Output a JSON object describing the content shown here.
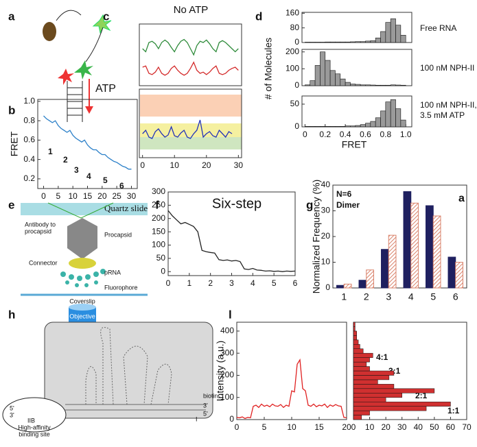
{
  "panel_labels": [
    "a",
    "b",
    "c",
    "d",
    "e",
    "f",
    "g",
    "h",
    "l"
  ],
  "diagram_a": {
    "arrow_label": "ATP"
  },
  "diagram_e": {
    "slide": "Quartz slide",
    "antibody": [
      "Antibody to",
      "procapsid"
    ],
    "procapsid": "Procapsid",
    "connector": "Connector",
    "prna": "pRNA",
    "fluorophore": "Fluorophore",
    "coverslip": "Coverslip",
    "objective": "Objective"
  },
  "diagram_h": {
    "biotin": "biotin",
    "site": [
      "High-affinity",
      "binding site"
    ],
    "ends_left": [
      "5'",
      "3'"
    ],
    "ends_right": [
      "3'",
      "5'"
    ],
    "iib": "IIB",
    "i": "I"
  },
  "chart_data": [
    {
      "type": "line",
      "ylabel": "FRET",
      "x": [
        0,
        1,
        2,
        3,
        4,
        5,
        6,
        7,
        8,
        9,
        10,
        11,
        12,
        13,
        14,
        15,
        16,
        17,
        18,
        19,
        20,
        21,
        22,
        23,
        24,
        25,
        26,
        27,
        28,
        29,
        30
      ],
      "series": [
        {
          "color": "#2a7fc8",
          "values": [
            0.85,
            0.82,
            0.8,
            0.78,
            0.8,
            0.75,
            0.72,
            0.7,
            0.68,
            0.7,
            0.65,
            0.62,
            0.6,
            0.58,
            0.6,
            0.55,
            0.52,
            0.5,
            0.5,
            0.47,
            0.45,
            0.45,
            0.42,
            0.4,
            0.38,
            0.37,
            0.35,
            0.33,
            0.32,
            0.3,
            0.3
          ]
        }
      ],
      "xlim": [
        -2,
        32
      ],
      "ylim": [
        0.1,
        1.02
      ],
      "xticks": [
        0,
        5,
        10,
        15,
        20,
        25,
        30
      ],
      "yticks": [
        0.2,
        0.4,
        0.6,
        0.8,
        {
          "value": 1,
          "label": "1.0"
        }
      ],
      "annotations": [
        "1",
        "2",
        "3",
        "4",
        "5",
        "6"
      ]
    },
    {
      "type": "line",
      "title": "No ATP",
      "x": [
        0,
        1,
        2,
        3,
        4,
        5,
        6,
        7,
        8,
        9,
        10,
        11,
        12,
        13,
        14,
        15,
        16,
        17,
        18,
        19,
        20,
        21,
        22,
        23,
        24,
        25,
        26,
        27,
        28,
        29,
        30
      ],
      "series": [
        {
          "color": "#2e8b3a",
          "values": [
            0.6,
            0.55,
            0.7,
            0.72,
            0.68,
            0.6,
            0.7,
            0.74,
            0.7,
            0.62,
            0.55,
            0.65,
            0.72,
            0.75,
            0.7,
            0.6,
            0.5,
            0.65,
            0.72,
            0.7,
            0.74,
            0.68,
            0.6,
            0.55,
            0.7,
            0.73,
            0.7,
            0.65,
            0.6,
            0.55,
            0.6
          ]
        },
        {
          "color": "#d42a2a",
          "values": [
            0.3,
            0.32,
            0.2,
            0.18,
            0.22,
            0.3,
            0.2,
            0.17,
            0.2,
            0.28,
            0.32,
            0.25,
            0.2,
            0.17,
            0.2,
            0.28,
            0.38,
            0.25,
            0.2,
            0.22,
            0.18,
            0.22,
            0.28,
            0.32,
            0.2,
            0.18,
            0.2,
            0.25,
            0.28,
            0.3,
            0.25
          ]
        }
      ],
      "xlim": [
        -1,
        31
      ],
      "ylim": [
        0,
        1
      ]
    },
    {
      "type": "line",
      "x": [
        0,
        1,
        2,
        3,
        4,
        5,
        6,
        7,
        8,
        9,
        10,
        11,
        12,
        13,
        14,
        15,
        16,
        17,
        18,
        19,
        20,
        21,
        22,
        23,
        24,
        25,
        26,
        27,
        28
      ],
      "series": [
        {
          "color": "#2233bb",
          "values": [
            0.35,
            0.4,
            0.3,
            0.28,
            0.38,
            0.42,
            0.35,
            0.3,
            0.33,
            0.45,
            0.32,
            0.3,
            0.36,
            0.4,
            0.3,
            0.28,
            0.35,
            0.4,
            0.55,
            0.3,
            0.35,
            0.38,
            0.32,
            0.3,
            0.4,
            0.35,
            0.3,
            0.38,
            0.35
          ]
        }
      ],
      "xlim": [
        -1,
        31
      ],
      "ylim": [
        0,
        1
      ],
      "xticks": [
        0,
        10,
        20,
        30
      ]
    },
    {
      "type": "histogram",
      "title": "Free RNA",
      "color": "#9a9a9a",
      "bins": [
        0,
        0.05,
        0.1,
        0.15,
        0.2,
        0.25,
        0.3,
        0.35,
        0.4,
        0.45,
        0.5,
        0.55,
        0.6,
        0.65,
        0.7,
        0.75,
        0.8,
        0.85,
        0.9,
        0.95,
        1
      ],
      "counts": [
        2,
        2,
        2,
        2,
        3,
        3,
        3,
        3,
        3,
        4,
        5,
        5,
        8,
        10,
        25,
        60,
        110,
        130,
        95,
        40
      ],
      "xlim": [
        -0.03,
        1.06
      ],
      "ylim": [
        0,
        165
      ],
      "yticks": [
        0,
        80,
        160
      ]
    },
    {
      "type": "histogram",
      "title": "100 nM NPH-II",
      "ylabel": "# of Molecules",
      "color": "#9a9a9a",
      "bins": [
        0,
        0.05,
        0.1,
        0.15,
        0.2,
        0.25,
        0.3,
        0.35,
        0.4,
        0.45,
        0.5,
        0.55,
        0.6,
        0.65,
        0.7,
        0.75,
        0.8,
        0.85,
        0.9,
        0.95,
        1
      ],
      "counts": [
        5,
        30,
        120,
        200,
        150,
        90,
        70,
        40,
        20,
        10,
        8,
        5,
        5,
        4,
        3,
        3,
        3,
        5,
        4,
        3
      ],
      "xlim": [
        -0.03,
        1.06
      ],
      "ylim": [
        0,
        215
      ],
      "yticks": [
        0,
        100,
        200
      ]
    },
    {
      "type": "histogram",
      "title": [
        "100 nM NPH-II,",
        "3.5 mM ATP"
      ],
      "xlabel": "FRET",
      "color": "#9a9a9a",
      "bins": [
        0,
        0.05,
        0.1,
        0.15,
        0.2,
        0.25,
        0.3,
        0.35,
        0.4,
        0.45,
        0.5,
        0.55,
        0.6,
        0.65,
        0.7,
        0.75,
        0.8,
        0.85,
        0.9,
        0.95,
        1
      ],
      "counts": [
        1,
        1,
        1,
        1,
        1,
        1,
        1,
        1,
        2,
        2,
        3,
        5,
        8,
        12,
        20,
        35,
        55,
        60,
        40,
        15
      ],
      "xlim": [
        -0.03,
        1.06
      ],
      "ylim": [
        0,
        68
      ],
      "yticks": [
        0,
        50
      ],
      "xticks": [
        0,
        0.2,
        0.4,
        0.6,
        0.8,
        {
          "value": 1,
          "label": "1.0"
        }
      ]
    },
    {
      "type": "line",
      "title": "Six-step",
      "x": [
        0,
        0.2,
        0.4,
        0.6,
        0.8,
        1,
        1.2,
        1.4,
        1.6,
        1.8,
        2,
        2.2,
        2.4,
        2.6,
        2.8,
        3,
        3.2,
        3.4,
        3.6,
        3.8,
        4,
        4.2,
        4.4,
        4.6,
        4.8,
        5,
        5.2,
        5.4,
        5.6,
        5.8,
        6
      ],
      "series": [
        {
          "color": "#222",
          "values": [
            230,
            210,
            195,
            180,
            185,
            178,
            170,
            150,
            80,
            75,
            72,
            70,
            45,
            42,
            44,
            40,
            42,
            38,
            10,
            8,
            12,
            6,
            5,
            2,
            3,
            1,
            2,
            0,
            2,
            1,
            2
          ]
        }
      ],
      "xlim": [
        0,
        6
      ],
      "ylim": [
        -15,
        300
      ],
      "xticks": [
        0,
        1,
        2,
        3,
        4,
        5,
        6
      ],
      "yticks": [
        0,
        50,
        100,
        150,
        200,
        250,
        300
      ]
    },
    {
      "type": "bar",
      "ylabel": "Normalized Frequency (%)",
      "annotations": [
        "N=6",
        "Dimer"
      ],
      "corner_label": "a",
      "categories": [
        "1",
        "2",
        "3",
        "4",
        "5",
        "6"
      ],
      "series": [
        {
          "color": "#1f2060",
          "pattern": "solid",
          "values": [
            1,
            3,
            15,
            37.5,
            32,
            12
          ]
        },
        {
          "color": "#d9826a",
          "pattern": "hatch",
          "values": [
            1.5,
            7,
            20.5,
            33,
            28,
            10
          ]
        }
      ],
      "ylim": [
        0,
        40
      ],
      "yticks": [
        0,
        10,
        20,
        30,
        40
      ]
    },
    {
      "type": "line",
      "ylabel": "Intensity (a.u.)",
      "x": [
        0,
        0.5,
        1,
        1.5,
        2,
        2.5,
        3,
        3.5,
        4,
        4.5,
        5,
        5.5,
        6,
        6.5,
        7,
        7.5,
        8,
        8.5,
        9,
        9.5,
        10,
        10.5,
        11,
        11.5,
        12,
        12.5,
        13,
        13.5,
        14,
        14.5,
        15,
        15.5,
        16,
        16.5,
        17,
        17.5,
        18,
        18.5,
        19,
        19.5,
        20
      ],
      "series": [
        {
          "color": "#e02020",
          "values": [
            10,
            8,
            12,
            5,
            10,
            8,
            60,
            65,
            55,
            70,
            60,
            65,
            58,
            70,
            62,
            60,
            68,
            55,
            65,
            60,
            130,
            125,
            250,
            270,
            140,
            130,
            65,
            60,
            70,
            58,
            65,
            62,
            70,
            55,
            66,
            60,
            68,
            62,
            60,
            10,
            8
          ]
        }
      ],
      "xlim": [
        0,
        20
      ],
      "ylim": [
        0,
        440
      ],
      "xticks": [
        0,
        5,
        10,
        15,
        20
      ],
      "yticks": [
        0,
        100,
        200,
        300,
        400
      ]
    },
    {
      "type": "histogram",
      "orientation": "horizontal",
      "color": "#d03030",
      "annotations": [
        "4:1",
        "3:1",
        "2:1",
        "1:1"
      ],
      "bins": [
        0,
        20,
        40,
        60,
        80,
        100,
        120,
        140,
        160,
        180,
        200,
        220,
        240,
        260,
        280,
        300,
        320,
        340,
        360,
        380,
        400,
        420,
        440
      ],
      "counts": [
        5,
        10,
        45,
        60,
        20,
        30,
        50,
        25,
        15,
        22,
        25,
        10,
        8,
        10,
        12,
        6,
        4,
        3,
        2,
        2,
        1,
        1
      ],
      "xlim": [
        0,
        70
      ],
      "ylim": [
        0,
        440
      ],
      "xticks": [
        0,
        10,
        20,
        30,
        40,
        50,
        60,
        70
      ]
    }
  ]
}
